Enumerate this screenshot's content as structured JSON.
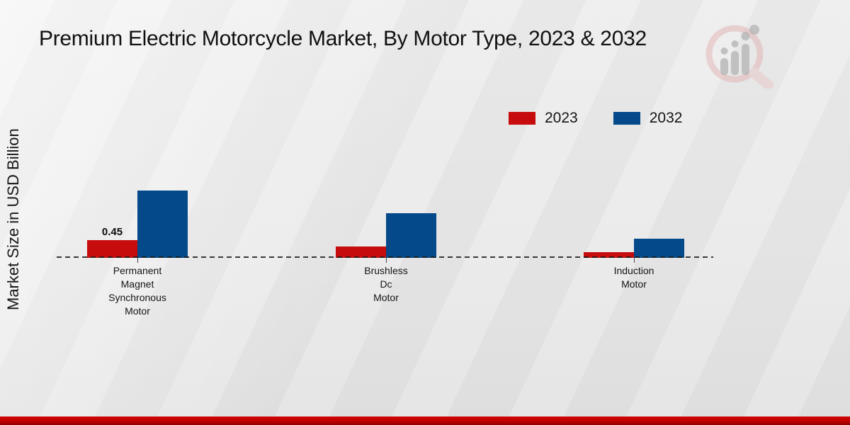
{
  "header": {
    "title": "Premium Electric Motorcycle Market, By Motor Type, 2023 & 2032"
  },
  "axes": {
    "ylabel": "Market Size in USD Billion",
    "x_axis_style": "dashed-baseline"
  },
  "legend": {
    "position": "top-right",
    "items": [
      {
        "label": "2023",
        "color": "#c60c0c"
      },
      {
        "label": "2032",
        "color": "#04498a"
      }
    ]
  },
  "colors": {
    "series_2023": "#c60c0c",
    "series_2032": "#04498a",
    "footer_stripe": "#c00000",
    "background": "#e9e9e9"
  },
  "watermark": {
    "icon": "magnifier-bar-chart-logo"
  },
  "chart_data": {
    "type": "bar",
    "title": "Premium Electric Motorcycle Market, By Motor Type, 2023 & 2032",
    "xlabel": "",
    "ylabel": "Market Size in USD Billion",
    "categories": [
      "Permanent Magnet Synchronous Motor",
      "Brushless Dc Motor",
      "Induction Motor"
    ],
    "categories_lines": [
      [
        "Permanent",
        "Magnet",
        "Synchronous",
        "Motor"
      ],
      [
        "Brushless",
        "Dc",
        "Motor"
      ],
      [
        "Induction",
        "Motor"
      ]
    ],
    "series": [
      {
        "name": "2023",
        "color": "#c60c0c",
        "values": [
          0.45,
          0.29,
          0.14
        ]
      },
      {
        "name": "2032",
        "color": "#04498a",
        "values": [
          1.71,
          1.13,
          0.49
        ]
      }
    ],
    "data_labels": [
      {
        "series": "2023",
        "category_index": 0,
        "text": "0.45"
      }
    ],
    "ylim": [
      0,
      2
    ],
    "grid": false,
    "legend_position": "top-right",
    "baseline_style": "dashed"
  }
}
